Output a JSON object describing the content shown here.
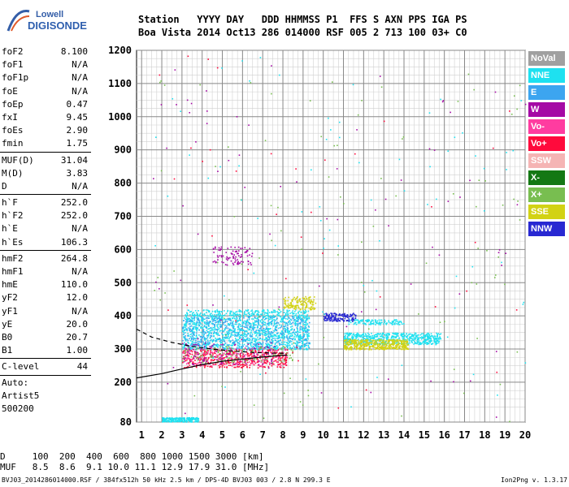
{
  "logo": {
    "line1": "Lowell",
    "line2": "DIGISONDE"
  },
  "header": {
    "row1": "Station   YYYY DAY   DDD HHMMSS P1  FFS S AXN PPS IGA PS",
    "row2": "Boa Vista 2014 Oct13 286 014000 RSF 005 2 713 100 03+ C0"
  },
  "params": {
    "group1": [
      {
        "k": "foF2",
        "v": "8.100"
      },
      {
        "k": "foF1",
        "v": "N/A"
      },
      {
        "k": "foF1p",
        "v": "N/A"
      },
      {
        "k": "foE",
        "v": "N/A"
      },
      {
        "k": "foEp",
        "v": "0.47"
      },
      {
        "k": "fxI",
        "v": "9.45"
      },
      {
        "k": "foEs",
        "v": "2.90"
      },
      {
        "k": "fmin",
        "v": "1.75"
      }
    ],
    "group2": [
      {
        "k": "MUF(D)",
        "v": "31.04"
      },
      {
        "k": "M(D)",
        "v": "3.83"
      },
      {
        "k": "D",
        "v": "N/A"
      }
    ],
    "group3": [
      {
        "k": "h`F",
        "v": "252.0"
      },
      {
        "k": "h`F2",
        "v": "252.0"
      },
      {
        "k": "h`E",
        "v": "N/A"
      },
      {
        "k": "h`Es",
        "v": "106.3"
      }
    ],
    "group4": [
      {
        "k": "hmF2",
        "v": "264.8"
      },
      {
        "k": "hmF1",
        "v": "N/A"
      },
      {
        "k": "hmE",
        "v": "110.0"
      },
      {
        "k": "yF2",
        "v": "12.0"
      },
      {
        "k": "yF1",
        "v": "N/A"
      },
      {
        "k": "yE",
        "v": "20.0"
      },
      {
        "k": "B0",
        "v": "20.7"
      },
      {
        "k": "B1",
        "v": "1.00"
      }
    ],
    "group5": [
      {
        "k": "C-level",
        "v": "44"
      }
    ],
    "auto": [
      "Auto:",
      "Artist5",
      "500200"
    ]
  },
  "legend": [
    {
      "label": "NoVal",
      "color": "#a0a0a0"
    },
    {
      "label": "NNE",
      "color": "#1ee1f0"
    },
    {
      "label": "E",
      "color": "#3ca5f0"
    },
    {
      "label": "W",
      "color": "#a50aa5"
    },
    {
      "label": "Vo-",
      "color": "#ff3ca0"
    },
    {
      "label": "Vo+",
      "color": "#ff0a3c"
    },
    {
      "label": "SSW",
      "color": "#f5b4b4"
    },
    {
      "label": "X-",
      "color": "#147814"
    },
    {
      "label": "X+",
      "color": "#78be50"
    },
    {
      "label": "SSE",
      "color": "#d2d214"
    },
    {
      "label": "NNW",
      "color": "#2828d2"
    }
  ],
  "distance_table": {
    "row1": "D     100  200  400  600  800 1000 1500 3000 [km]",
    "row2": "MUF   8.5  8.6  9.1 10.0 11.1 12.9 17.9 31.0 [MHz]"
  },
  "footer": {
    "left": "BVJ03_2014286014000.RSF / 384fx512h 50 kHz 2.5 km / DPS-4D BVJ03 003 / 2.8 N 299.3 E",
    "right": "Ion2Png v. 1.3.17"
  },
  "chart_data": {
    "type": "scatter",
    "xlim": [
      0.75,
      20
    ],
    "ylim": [
      80,
      1200
    ],
    "x_ticks": [
      1,
      2,
      3,
      4,
      5,
      6,
      7,
      8,
      9,
      10,
      11,
      12,
      13,
      14,
      15,
      16,
      17,
      18,
      19,
      20
    ],
    "y_ticks": [
      80,
      200,
      300,
      400,
      500,
      600,
      700,
      800,
      900,
      1000,
      1100,
      1200
    ],
    "grid": true,
    "clusters": [
      {
        "series": "NNE",
        "x": [
          3.0,
          9.3
        ],
        "y": [
          300,
          420
        ],
        "n": 1500
      },
      {
        "series": "E",
        "x": [
          3.0,
          9.3
        ],
        "y": [
          300,
          400
        ],
        "n": 500
      },
      {
        "series": "NNE",
        "x": [
          11.0,
          15.8
        ],
        "y": [
          315,
          350
        ],
        "n": 600
      },
      {
        "series": "SSE",
        "x": [
          11.0,
          14.2
        ],
        "y": [
          300,
          330
        ],
        "n": 450
      },
      {
        "series": "NNE",
        "x": [
          11.2,
          14.0
        ],
        "y": [
          375,
          390
        ],
        "n": 120
      },
      {
        "series": "NNW",
        "x": [
          10.0,
          11.6
        ],
        "y": [
          385,
          410
        ],
        "n": 150
      },
      {
        "series": "SSE",
        "x": [
          8.0,
          9.6
        ],
        "y": [
          420,
          460
        ],
        "n": 150
      },
      {
        "series": "Vo+",
        "x": [
          3.0,
          8.2
        ],
        "y": [
          245,
          300
        ],
        "n": 450
      },
      {
        "series": "Vo-",
        "x": [
          3.0,
          8.2
        ],
        "y": [
          250,
          305
        ],
        "n": 200
      },
      {
        "series": "W",
        "x": [
          3.0,
          7.5
        ],
        "y": [
          255,
          320
        ],
        "n": 120
      },
      {
        "series": "X+",
        "x": [
          3.0,
          8.5
        ],
        "y": [
          260,
          310
        ],
        "n": 120
      },
      {
        "series": "NNE",
        "x": [
          2.0,
          3.8
        ],
        "y": [
          82,
          95
        ],
        "n": 220
      },
      {
        "series": "W",
        "x": [
          4.5,
          6.5
        ],
        "y": [
          555,
          610
        ],
        "n": 90
      },
      {
        "series": "X+",
        "x": [
          1.5,
          20.0
        ],
        "y": [
          80,
          1200
        ],
        "n": 100
      },
      {
        "series": "W",
        "x": [
          1.5,
          20.0
        ],
        "y": [
          80,
          1200
        ],
        "n": 80
      },
      {
        "series": "NNE",
        "x": [
          1.5,
          20.0
        ],
        "y": [
          80,
          1200
        ],
        "n": 80
      },
      {
        "series": "Vo+",
        "x": [
          1.5,
          20.0
        ],
        "y": [
          80,
          1200
        ],
        "n": 40
      }
    ],
    "traces": [
      {
        "style": "solid",
        "x": [
          0.75,
          2,
          3,
          4,
          5,
          6,
          7,
          8.2
        ],
        "y": [
          213,
          226,
          240,
          253,
          263,
          270,
          276,
          282
        ]
      },
      {
        "style": "dashed",
        "x": [
          0.75,
          1.5,
          2.5,
          3.5,
          4.5,
          5.5,
          6.5,
          7.5,
          8.2
        ],
        "y": [
          360,
          336,
          320,
          308,
          300,
          294,
          290,
          288,
          287
        ]
      }
    ]
  }
}
